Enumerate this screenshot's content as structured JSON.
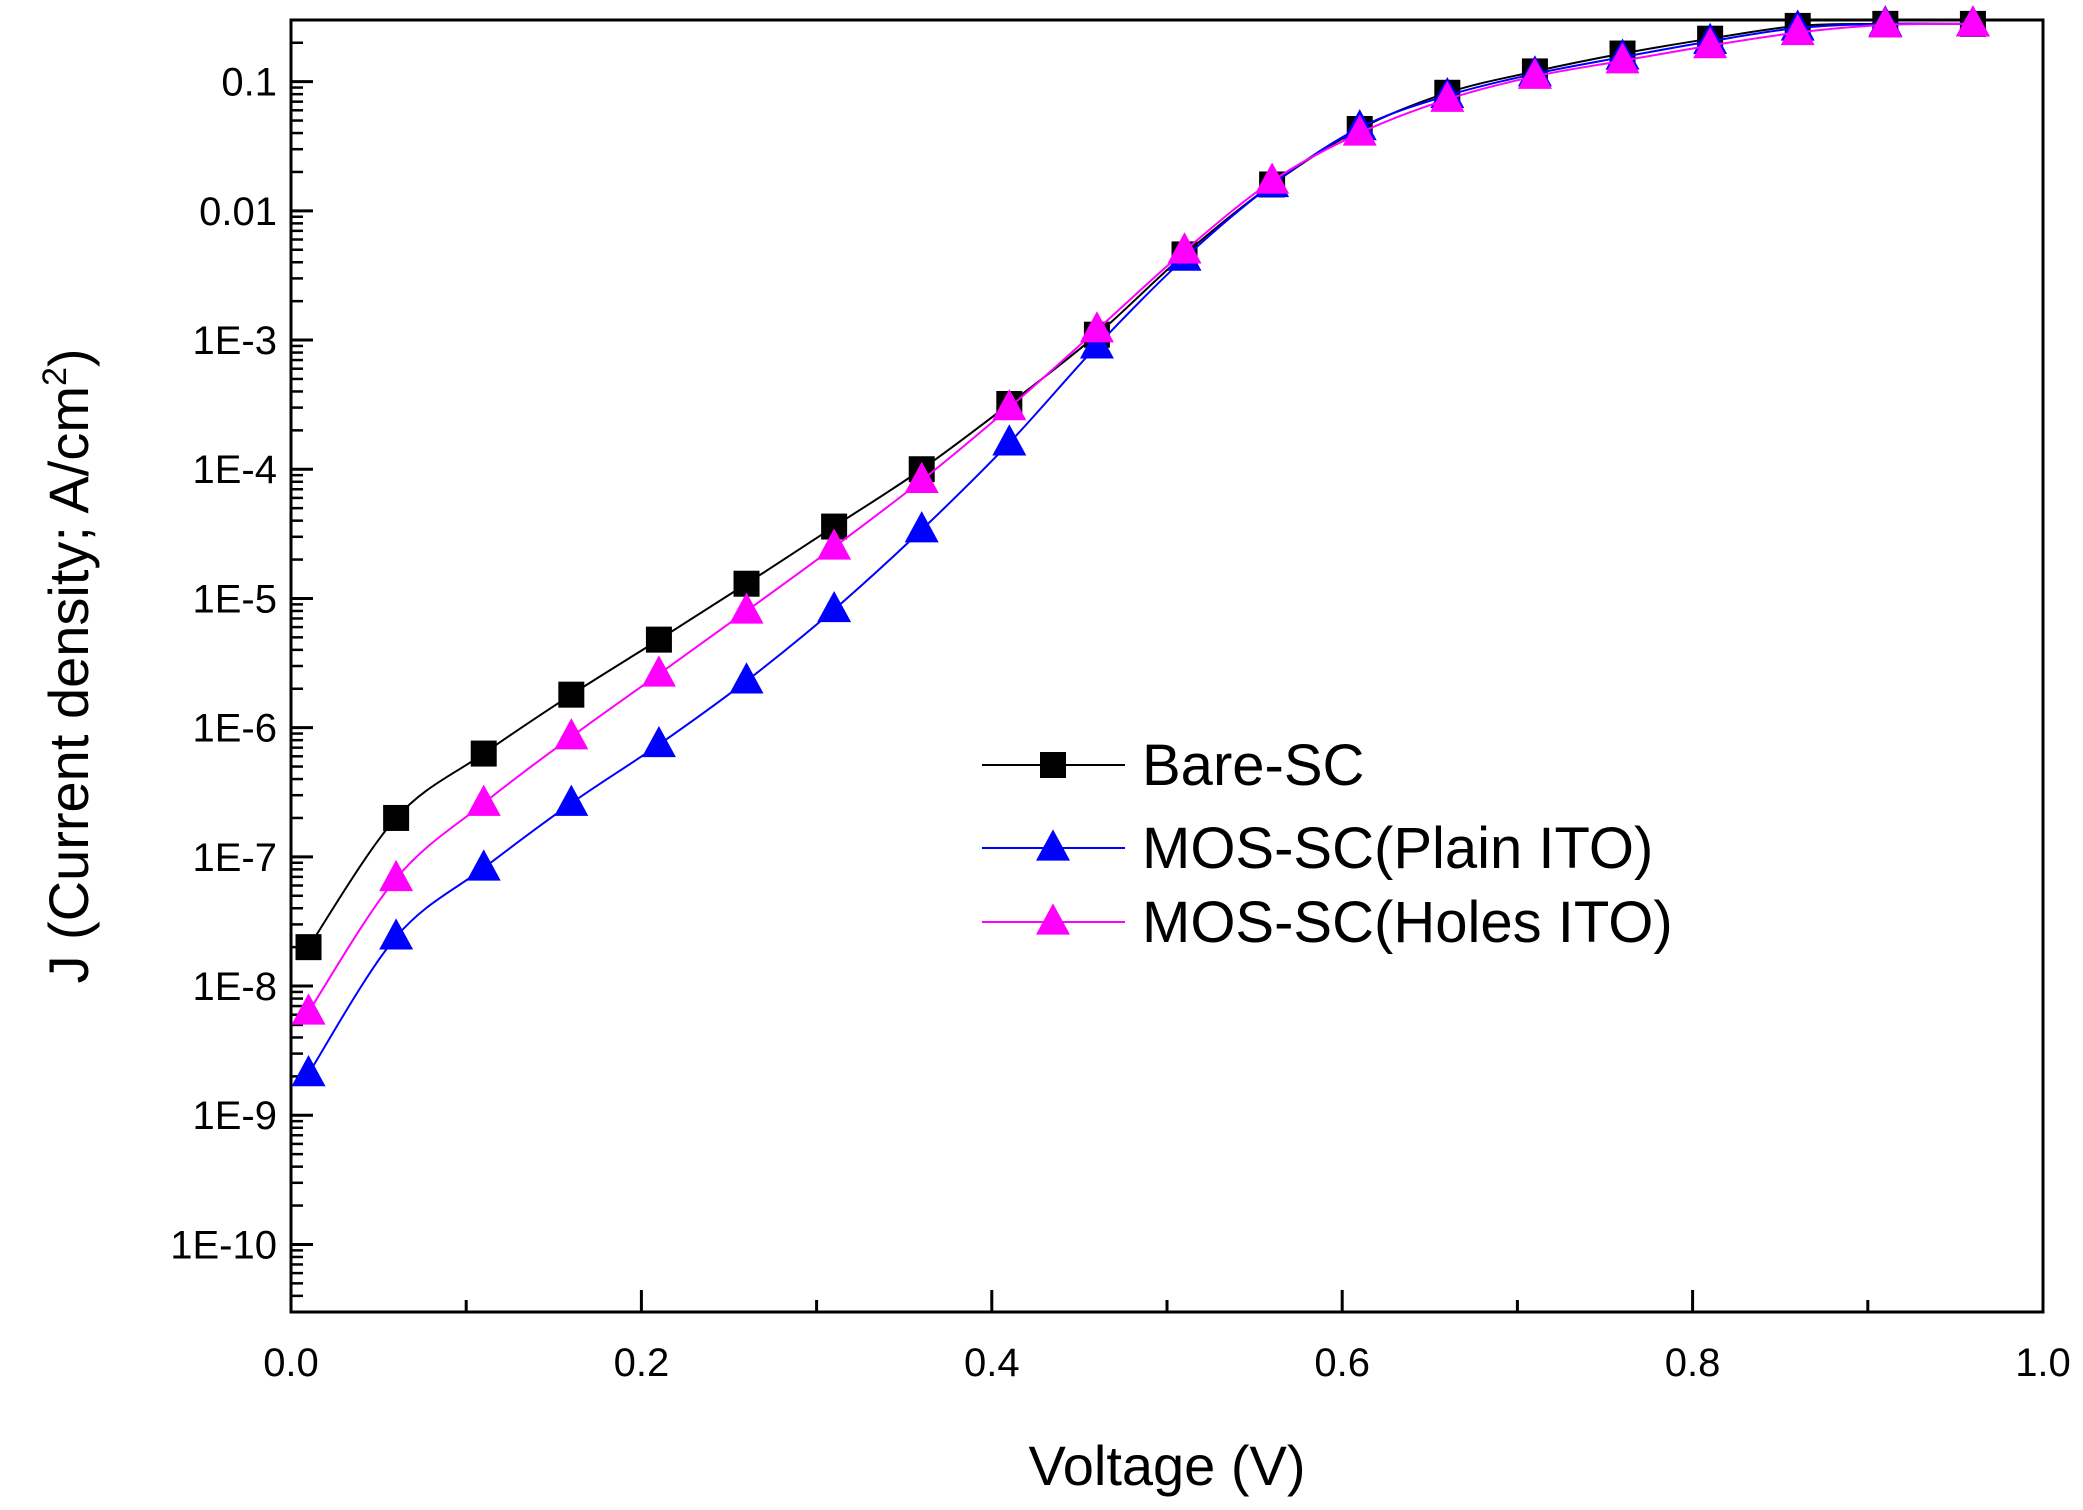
{
  "chart_data": {
    "type": "line",
    "xlabel": "Voltage (V)",
    "ylabel": "J (Current density; A/cm",
    "ylabel_sup": "2",
    "ylabel_close": ")",
    "y_scale": "log",
    "xlim": [
      0.0,
      1.0
    ],
    "ylim": [
      3e-11,
      0.3
    ],
    "x_ticks": [
      "0.0",
      "0.2",
      "0.4",
      "0.6",
      "0.8",
      "1.0"
    ],
    "y_ticks": [
      "1E-10",
      "1E-9",
      "1E-8",
      "1E-7",
      "1E-6",
      "1E-5",
      "1E-4",
      "1E-3",
      "0.01",
      "0.1"
    ],
    "legend_position": "center-right",
    "grid": false,
    "series": [
      {
        "name": "Bare-SC",
        "marker": "square",
        "color": "#000000",
        "x": [
          0.01,
          0.06,
          0.11,
          0.16,
          0.21,
          0.26,
          0.31,
          0.36,
          0.41,
          0.46,
          0.51,
          0.56,
          0.61,
          0.66,
          0.71,
          0.76,
          0.81,
          0.86,
          0.91,
          0.96
        ],
        "y": [
          2e-08,
          2e-07,
          6.3e-07,
          1.8e-06,
          4.8e-06,
          1.3e-05,
          3.6e-05,
          0.0001,
          0.00032,
          0.0011,
          0.0046,
          0.016,
          0.043,
          0.082,
          0.12,
          0.165,
          0.215,
          0.27,
          0.28,
          0.28
        ]
      },
      {
        "name": "MOS-SC(Plain ITO)",
        "marker": "triangle",
        "color": "#0000ff",
        "x": [
          0.01,
          0.06,
          0.11,
          0.16,
          0.21,
          0.26,
          0.31,
          0.36,
          0.41,
          0.46,
          0.51,
          0.56,
          0.61,
          0.66,
          0.71,
          0.76,
          0.81,
          0.86,
          0.91,
          0.96
        ],
        "y": [
          2.1e-09,
          2.4e-08,
          8.2e-08,
          2.6e-07,
          7.4e-07,
          2.3e-06,
          8.2e-06,
          3.4e-05,
          0.00016,
          0.0009,
          0.0043,
          0.016,
          0.044,
          0.078,
          0.115,
          0.155,
          0.205,
          0.26,
          0.28,
          0.28
        ]
      },
      {
        "name": "MOS-SC(Holes ITO)",
        "marker": "triangle",
        "color": "#ff00ff",
        "x": [
          0.01,
          0.06,
          0.11,
          0.16,
          0.21,
          0.26,
          0.31,
          0.36,
          0.41,
          0.46,
          0.51,
          0.56,
          0.61,
          0.66,
          0.71,
          0.76,
          0.81,
          0.86,
          0.91,
          0.96
        ],
        "y": [
          6.3e-09,
          6.8e-08,
          2.6e-07,
          8.5e-07,
          2.6e-06,
          8e-06,
          2.5e-05,
          8.2e-05,
          0.0003,
          0.0012,
          0.0049,
          0.017,
          0.04,
          0.073,
          0.11,
          0.145,
          0.19,
          0.24,
          0.275,
          0.28
        ]
      }
    ]
  }
}
